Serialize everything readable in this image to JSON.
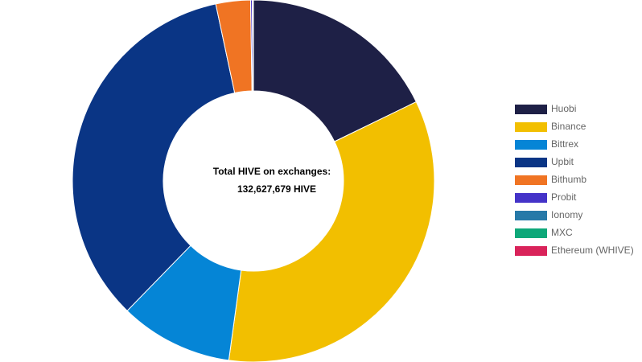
{
  "chart_data": {
    "type": "doughnut",
    "center_text": [
      "Total HIVE on exchanges:",
      "132,627,679 HIVE"
    ],
    "categories": [
      "Huobi",
      "Binance",
      "Bittrex",
      "Upbit",
      "Bithumb",
      "Probit",
      "Ionomy",
      "MXC",
      "Ethereum (WHIVE)"
    ],
    "values": [
      23600000,
      45600000,
      13400000,
      45600000,
      4100000,
      200000,
      50000,
      50000,
      30000
    ],
    "colors": [
      "#1e2046",
      "#f2bf00",
      "#0585d6",
      "#0a3585",
      "#f07423",
      "#4433c8",
      "#2679a8",
      "#0ea879",
      "#d9235a"
    ]
  }
}
